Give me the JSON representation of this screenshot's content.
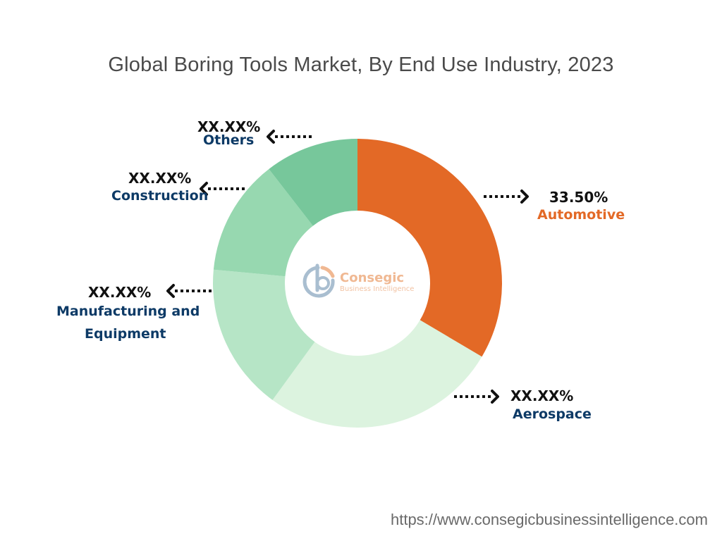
{
  "chart_data": {
    "type": "donut",
    "title": "Global Boring Tools Market, By End Use Industry, 2023",
    "slices": [
      {
        "label": "Automotive",
        "value_text": "33.50%",
        "value": 33.5,
        "color": "#e36926",
        "label_color": "#e36926"
      },
      {
        "label": "Aerospace",
        "value_text": "XX.XX%",
        "value": 26.5,
        "color": "#dcf3df",
        "label_color": "#0d3a66"
      },
      {
        "label": "Manufacturing and Equipment",
        "label_lines": [
          "Manufacturing and",
          "Equipment"
        ],
        "value_text": "XX.XX%",
        "value": 16.5,
        "color": "#b6e5c6",
        "label_color": "#0d3a66"
      },
      {
        "label": "Construction",
        "value_text": "XX.XX%",
        "value": 13.0,
        "color": "#97d8b0",
        "label_color": "#0d3a66"
      },
      {
        "label": "Others",
        "value_text": "XX.XX%",
        "value": 10.5,
        "color": "#77c79b",
        "label_color": "#0d3a66"
      }
    ],
    "legend": "none"
  },
  "logo": {
    "name": "Consegic",
    "sub": "Business Intelligence"
  },
  "source": "https://www.consegicbusinessintelligence.com"
}
